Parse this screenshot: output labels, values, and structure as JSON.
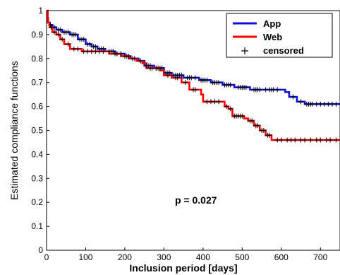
{
  "chart_data": {
    "type": "line",
    "xlabel": "Inclusion period [days]",
    "ylabel": "Estimated compliance functions",
    "xlim": [
      0,
      750
    ],
    "ylim": [
      0,
      1
    ],
    "x_ticks": [
      0,
      100,
      200,
      300,
      400,
      500,
      600,
      700
    ],
    "y_ticks": [
      0,
      0.1,
      0.2,
      0.3,
      0.4,
      0.5,
      0.6,
      0.7,
      0.8,
      0.9,
      1
    ],
    "grid": false,
    "legend_position": "top-right",
    "annotation": "p = 0.027",
    "censored_label": "censored",
    "colors": {
      "App": "#1010e0",
      "Web": "#ff0000",
      "censored": "#000000"
    },
    "series": [
      {
        "name": "App",
        "points": [
          [
            0,
            0.97
          ],
          [
            4,
            0.95
          ],
          [
            8,
            0.94
          ],
          [
            15,
            0.93
          ],
          [
            25,
            0.92
          ],
          [
            40,
            0.91
          ],
          [
            60,
            0.9
          ],
          [
            80,
            0.88
          ],
          [
            100,
            0.86
          ],
          [
            115,
            0.85
          ],
          [
            130,
            0.84
          ],
          [
            150,
            0.83
          ],
          [
            175,
            0.82
          ],
          [
            200,
            0.81
          ],
          [
            215,
            0.8
          ],
          [
            235,
            0.79
          ],
          [
            250,
            0.77
          ],
          [
            275,
            0.76
          ],
          [
            300,
            0.74
          ],
          [
            320,
            0.73
          ],
          [
            350,
            0.72
          ],
          [
            390,
            0.71
          ],
          [
            420,
            0.7
          ],
          [
            450,
            0.69
          ],
          [
            480,
            0.68
          ],
          [
            520,
            0.67
          ],
          [
            555,
            0.67
          ],
          [
            600,
            0.67
          ],
          [
            610,
            0.66
          ],
          [
            620,
            0.64
          ],
          [
            640,
            0.62
          ],
          [
            660,
            0.61
          ],
          [
            750,
            0.61
          ]
        ],
        "censored_x": [
          10,
          20,
          30,
          35,
          45,
          50,
          55,
          65,
          70,
          75,
          85,
          90,
          95,
          105,
          110,
          120,
          125,
          135,
          140,
          145,
          160,
          165,
          170,
          180,
          190,
          205,
          210,
          225,
          240,
          255,
          260,
          265,
          280,
          285,
          290,
          295,
          305,
          310,
          315,
          325,
          330,
          335,
          340,
          345,
          360,
          365,
          370,
          380,
          395,
          400,
          405,
          410,
          425,
          430,
          435,
          440,
          455,
          460,
          465,
          470,
          490,
          495,
          500,
          505,
          510,
          530,
          535,
          540,
          545,
          560,
          570,
          575,
          580,
          590,
          630,
          650,
          665,
          670,
          675,
          680,
          690,
          700,
          710,
          720,
          730,
          740
        ]
      },
      {
        "name": "Web",
        "points": [
          [
            0,
            1.0
          ],
          [
            3,
            0.95
          ],
          [
            8,
            0.93
          ],
          [
            15,
            0.91
          ],
          [
            25,
            0.9
          ],
          [
            35,
            0.88
          ],
          [
            45,
            0.86
          ],
          [
            60,
            0.84
          ],
          [
            90,
            0.83
          ],
          [
            150,
            0.83
          ],
          [
            160,
            0.82
          ],
          [
            190,
            0.81
          ],
          [
            210,
            0.8
          ],
          [
            230,
            0.79
          ],
          [
            245,
            0.78
          ],
          [
            255,
            0.76
          ],
          [
            290,
            0.75
          ],
          [
            300,
            0.73
          ],
          [
            320,
            0.72
          ],
          [
            345,
            0.7
          ],
          [
            365,
            0.67
          ],
          [
            385,
            0.67
          ],
          [
            395,
            0.65
          ],
          [
            400,
            0.62
          ],
          [
            445,
            0.62
          ],
          [
            455,
            0.6
          ],
          [
            465,
            0.59
          ],
          [
            475,
            0.56
          ],
          [
            505,
            0.55
          ],
          [
            515,
            0.54
          ],
          [
            530,
            0.52
          ],
          [
            545,
            0.5
          ],
          [
            560,
            0.48
          ],
          [
            575,
            0.46
          ],
          [
            750,
            0.46
          ]
        ],
        "censored_x": [
          12,
          20,
          30,
          40,
          55,
          70,
          80,
          95,
          105,
          115,
          125,
          135,
          145,
          175,
          180,
          200,
          220,
          240,
          265,
          270,
          280,
          310,
          330,
          335,
          355,
          375,
          380,
          410,
          420,
          430,
          440,
          460,
          470,
          480,
          485,
          490,
          495,
          500,
          520,
          525,
          535,
          540,
          550,
          555,
          565,
          570,
          590,
          600,
          615,
          625,
          635,
          650,
          660,
          675,
          690,
          700,
          715,
          725,
          740
        ]
      }
    ]
  }
}
